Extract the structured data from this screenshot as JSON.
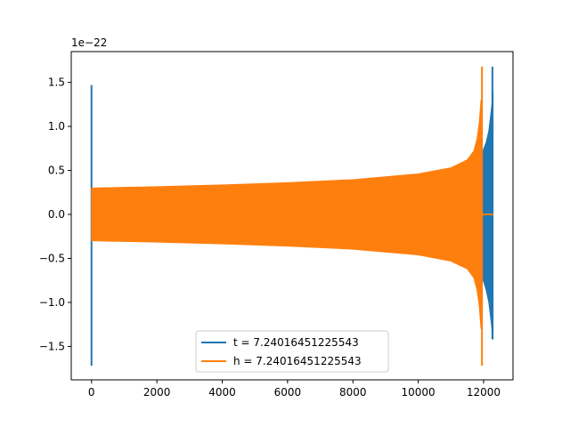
{
  "chart_data": {
    "type": "line",
    "title": "",
    "xlabel": "",
    "ylabel": "",
    "offset_text": "1e−22",
    "xlim": [
      -620,
      12900
    ],
    "ylim": [
      -1.88,
      1.85
    ],
    "x_ticks": [
      0,
      2000,
      4000,
      6000,
      8000,
      10000,
      12000
    ],
    "x_tick_labels": [
      "0",
      "2000",
      "4000",
      "6000",
      "8000",
      "10000",
      "12000"
    ],
    "y_ticks": [
      1.5,
      1.0,
      0.5,
      0.0,
      -0.5,
      -1.0,
      -1.5
    ],
    "y_tick_labels": [
      "1.5",
      "1.0",
      "0.5",
      "0.0",
      "−0.5",
      "−1.0",
      "−1.5"
    ],
    "grid": false,
    "legend_position": "lower-center",
    "series": [
      {
        "name": "t = 7.24016451225543",
        "color": "#1f77b4",
        "segments": [
          {
            "kind": "spike",
            "x": 0,
            "ymin": -1.72,
            "ymax": 1.47
          },
          {
            "kind": "band",
            "x": [
              11920,
              12000,
              12080,
              12160,
              12240,
              12290
            ],
            "upper": [
              0.68,
              0.74,
              0.82,
              0.95,
              1.2,
              1.4
            ],
            "lower": [
              -0.7,
              -0.76,
              -0.86,
              -1.0,
              -1.25,
              -1.42
            ]
          },
          {
            "kind": "spike",
            "x": 12270,
            "ymin": -1.42,
            "ymax": 1.68
          }
        ]
      },
      {
        "name": "h = 7.24016451225543",
        "color": "#ff7f0e",
        "segments": [
          {
            "kind": "band",
            "x": [
              0,
              2000,
              4000,
              6000,
              8000,
              10000,
              11000,
              11500,
              11700,
              11800,
              11870,
              11920
            ],
            "upper": [
              0.3,
              0.315,
              0.335,
              0.36,
              0.395,
              0.46,
              0.53,
              0.62,
              0.72,
              0.86,
              1.05,
              1.3
            ],
            "lower": [
              -0.3,
              -0.315,
              -0.335,
              -0.36,
              -0.395,
              -0.46,
              -0.53,
              -0.62,
              -0.72,
              -0.86,
              -1.05,
              -1.3
            ]
          },
          {
            "kind": "spike",
            "x": 11950,
            "ymin": -1.72,
            "ymax": 1.68
          },
          {
            "kind": "flat",
            "x": [
              11960,
              12300
            ],
            "y": 0.0
          }
        ]
      }
    ]
  }
}
